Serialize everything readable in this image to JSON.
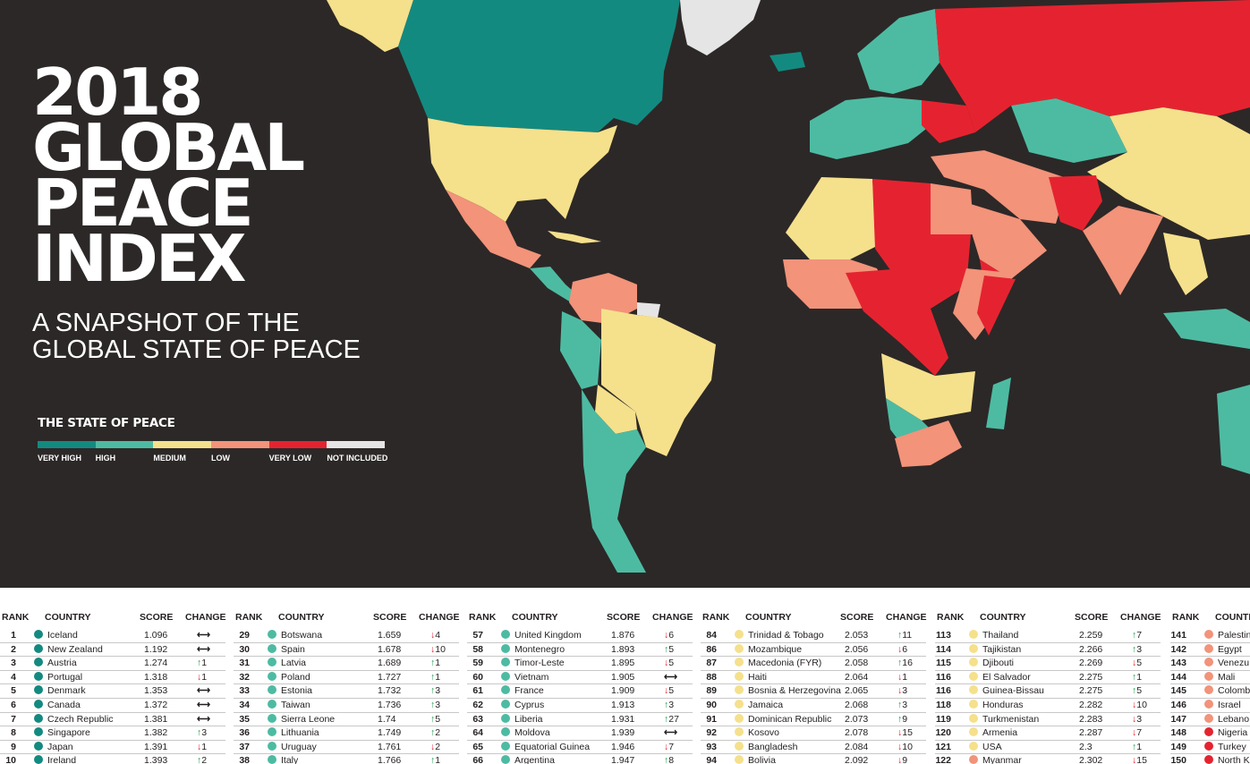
{
  "title_lines": [
    "2018",
    "GLOBAL",
    "PEACE",
    "INDEX"
  ],
  "subtitle_lines": [
    "A SNAPSHOT OF THE",
    "GLOBAL STATE OF PEACE"
  ],
  "legend": {
    "heading": "THE STATE OF PEACE",
    "items": [
      {
        "label": "VERY HIGH",
        "color": "#138a80"
      },
      {
        "label": "HIGH",
        "color": "#4dbba2"
      },
      {
        "label": "MEDIUM",
        "color": "#f5e08c"
      },
      {
        "label": "LOW",
        "color": "#f2937a"
      },
      {
        "label": "VERY LOW",
        "color": "#e52330"
      },
      {
        "label": "NOT INCLUDED",
        "color": "#e5e5e5"
      }
    ]
  },
  "table": {
    "headers": {
      "rank": "RANK",
      "country": "COUNTRY",
      "score": "SCORE",
      "change": "CHANGE"
    },
    "columns": [
      {
        "rows": [
          {
            "rank": "1",
            "country": "Iceland",
            "score": "1.096",
            "change": "",
            "dir": "same",
            "level": "very-high"
          },
          {
            "rank": "2",
            "country": "New Zealand",
            "score": "1.192",
            "change": "",
            "dir": "same",
            "level": "very-high"
          },
          {
            "rank": "3",
            "country": "Austria",
            "score": "1.274",
            "change": "1",
            "dir": "up",
            "level": "very-high"
          },
          {
            "rank": "4",
            "country": "Portugal",
            "score": "1.318",
            "change": "1",
            "dir": "down",
            "level": "very-high"
          },
          {
            "rank": "5",
            "country": "Denmark",
            "score": "1.353",
            "change": "",
            "dir": "same",
            "level": "very-high"
          },
          {
            "rank": "6",
            "country": "Canada",
            "score": "1.372",
            "change": "",
            "dir": "same",
            "level": "very-high"
          },
          {
            "rank": "7",
            "country": "Czech Republic",
            "score": "1.381",
            "change": "",
            "dir": "same",
            "level": "very-high"
          },
          {
            "rank": "8",
            "country": "Singapore",
            "score": "1.382",
            "change": "3",
            "dir": "up",
            "level": "very-high"
          },
          {
            "rank": "9",
            "country": "Japan",
            "score": "1.391",
            "change": "1",
            "dir": "down",
            "level": "very-high"
          },
          {
            "rank": "10",
            "country": "Ireland",
            "score": "1.393",
            "change": "2",
            "dir": "up",
            "level": "very-high"
          }
        ]
      },
      {
        "rows": [
          {
            "rank": "29",
            "country": "Botswana",
            "score": "1.659",
            "change": "4",
            "dir": "down",
            "level": "high"
          },
          {
            "rank": "30",
            "country": "Spain",
            "score": "1.678",
            "change": "10",
            "dir": "down",
            "level": "high"
          },
          {
            "rank": "31",
            "country": "Latvia",
            "score": "1.689",
            "change": "1",
            "dir": "up",
            "level": "high"
          },
          {
            "rank": "32",
            "country": "Poland",
            "score": "1.727",
            "change": "1",
            "dir": "up",
            "level": "high"
          },
          {
            "rank": "33",
            "country": "Estonia",
            "score": "1.732",
            "change": "3",
            "dir": "up",
            "level": "high"
          },
          {
            "rank": "34",
            "country": "Taiwan",
            "score": "1.736",
            "change": "3",
            "dir": "up",
            "level": "high"
          },
          {
            "rank": "35",
            "country": "Sierra Leone",
            "score": "1.74",
            "change": "5",
            "dir": "up",
            "level": "high"
          },
          {
            "rank": "36",
            "country": "Lithuania",
            "score": "1.749",
            "change": "2",
            "dir": "up",
            "level": "high"
          },
          {
            "rank": "37",
            "country": "Uruguay",
            "score": "1.761",
            "change": "2",
            "dir": "down",
            "level": "high"
          },
          {
            "rank": "38",
            "country": "Italy",
            "score": "1.766",
            "change": "1",
            "dir": "up",
            "level": "high"
          }
        ]
      },
      {
        "rows": [
          {
            "rank": "57",
            "country": "United Kingdom",
            "score": "1.876",
            "change": "6",
            "dir": "down",
            "level": "high"
          },
          {
            "rank": "58",
            "country": "Montenegro",
            "score": "1.893",
            "change": "5",
            "dir": "up",
            "level": "high"
          },
          {
            "rank": "59",
            "country": "Timor-Leste",
            "score": "1.895",
            "change": "5",
            "dir": "down",
            "level": "high"
          },
          {
            "rank": "60",
            "country": "Vietnam",
            "score": "1.905",
            "change": "",
            "dir": "same",
            "level": "high"
          },
          {
            "rank": "61",
            "country": "France",
            "score": "1.909",
            "change": "5",
            "dir": "down",
            "level": "high"
          },
          {
            "rank": "62",
            "country": "Cyprus",
            "score": "1.913",
            "change": "3",
            "dir": "up",
            "level": "high"
          },
          {
            "rank": "63",
            "country": "Liberia",
            "score": "1.931",
            "change": "27",
            "dir": "up",
            "level": "high"
          },
          {
            "rank": "64",
            "country": "Moldova",
            "score": "1.939",
            "change": "",
            "dir": "same",
            "level": "high"
          },
          {
            "rank": "65",
            "country": "Equatorial Guinea",
            "score": "1.946",
            "change": "7",
            "dir": "down",
            "level": "high"
          },
          {
            "rank": "66",
            "country": "Argentina",
            "score": "1.947",
            "change": "8",
            "dir": "up",
            "level": "high"
          }
        ]
      },
      {
        "rows": [
          {
            "rank": "84",
            "country": "Trinidad & Tobago",
            "score": "2.053",
            "change": "11",
            "dir": "up",
            "level": "medium"
          },
          {
            "rank": "86",
            "country": "Mozambique",
            "score": "2.056",
            "change": "6",
            "dir": "down",
            "level": "medium"
          },
          {
            "rank": "87",
            "country": "Macedonia (FYR)",
            "score": "2.058",
            "change": "16",
            "dir": "up",
            "level": "medium"
          },
          {
            "rank": "88",
            "country": "Haiti",
            "score": "2.064",
            "change": "1",
            "dir": "down",
            "level": "medium"
          },
          {
            "rank": "89",
            "country": "Bosnia & Herzegovina",
            "score": "2.065",
            "change": "3",
            "dir": "down",
            "level": "medium"
          },
          {
            "rank": "90",
            "country": "Jamaica",
            "score": "2.068",
            "change": "3",
            "dir": "up",
            "level": "medium"
          },
          {
            "rank": "91",
            "country": "Dominican Republic",
            "score": "2.073",
            "change": "9",
            "dir": "up",
            "level": "medium"
          },
          {
            "rank": "92",
            "country": "Kosovo",
            "score": "2.078",
            "change": "15",
            "dir": "down",
            "level": "medium"
          },
          {
            "rank": "93",
            "country": "Bangladesh",
            "score": "2.084",
            "change": "10",
            "dir": "down",
            "level": "medium"
          },
          {
            "rank": "94",
            "country": "Bolivia",
            "score": "2.092",
            "change": "9",
            "dir": "down",
            "level": "medium"
          }
        ]
      },
      {
        "rows": [
          {
            "rank": "113",
            "country": "Thailand",
            "score": "2.259",
            "change": "7",
            "dir": "up",
            "level": "medium"
          },
          {
            "rank": "114",
            "country": "Tajikistan",
            "score": "2.266",
            "change": "3",
            "dir": "up",
            "level": "medium"
          },
          {
            "rank": "115",
            "country": "Djibouti",
            "score": "2.269",
            "change": "5",
            "dir": "down",
            "level": "medium"
          },
          {
            "rank": "116",
            "country": "El Salvador",
            "score": "2.275",
            "change": "1",
            "dir": "up",
            "level": "medium"
          },
          {
            "rank": "116",
            "country": "Guinea-Bissau",
            "score": "2.275",
            "change": "5",
            "dir": "up",
            "level": "medium"
          },
          {
            "rank": "118",
            "country": "Honduras",
            "score": "2.282",
            "change": "10",
            "dir": "down",
            "level": "medium"
          },
          {
            "rank": "119",
            "country": "Turkmenistan",
            "score": "2.283",
            "change": "3",
            "dir": "down",
            "level": "medium"
          },
          {
            "rank": "120",
            "country": "Armenia",
            "score": "2.287",
            "change": "7",
            "dir": "down",
            "level": "medium"
          },
          {
            "rank": "121",
            "country": "USA",
            "score": "2.3",
            "change": "1",
            "dir": "up",
            "level": "medium"
          },
          {
            "rank": "122",
            "country": "Myanmar",
            "score": "2.302",
            "change": "15",
            "dir": "down",
            "level": "low"
          }
        ]
      },
      {
        "rows": [
          {
            "rank": "141",
            "country": "Palestin",
            "score": "",
            "change": "",
            "dir": "none",
            "level": "low"
          },
          {
            "rank": "142",
            "country": "Egypt",
            "score": "",
            "change": "",
            "dir": "none",
            "level": "low"
          },
          {
            "rank": "143",
            "country": "Venezu",
            "score": "",
            "change": "",
            "dir": "none",
            "level": "low"
          },
          {
            "rank": "144",
            "country": "Mali",
            "score": "",
            "change": "",
            "dir": "none",
            "level": "low"
          },
          {
            "rank": "145",
            "country": "Colomb",
            "score": "",
            "change": "",
            "dir": "none",
            "level": "low"
          },
          {
            "rank": "146",
            "country": "Israel",
            "score": "",
            "change": "",
            "dir": "none",
            "level": "low"
          },
          {
            "rank": "147",
            "country": "Lebano",
            "score": "",
            "change": "",
            "dir": "none",
            "level": "low"
          },
          {
            "rank": "148",
            "country": "Nigeria",
            "score": "",
            "change": "",
            "dir": "none",
            "level": "very-low"
          },
          {
            "rank": "149",
            "country": "Turkey",
            "score": "",
            "change": "",
            "dir": "none",
            "level": "very-low"
          },
          {
            "rank": "150",
            "country": "North K",
            "score": "",
            "change": "",
            "dir": "none",
            "level": "very-low"
          }
        ]
      }
    ]
  }
}
